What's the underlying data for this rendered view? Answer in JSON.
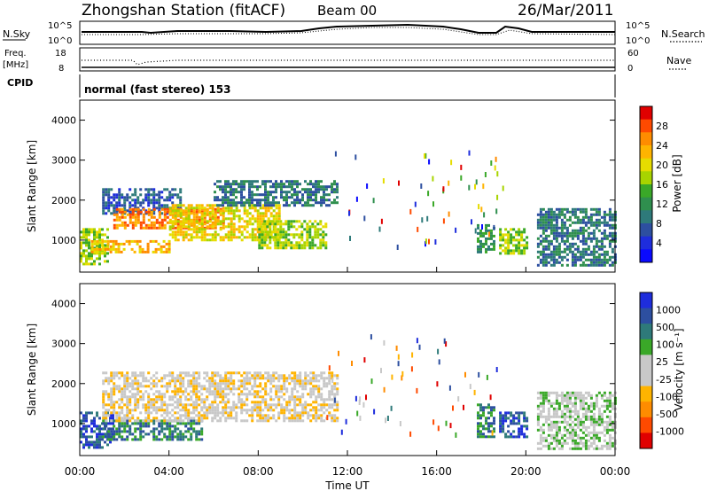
{
  "header": {
    "station": "Zhongshan Station (fitACF)",
    "beam": "Beam 00",
    "date": "26/Mar/2011"
  },
  "mode_text": "normal (fast stereo) 153",
  "nsky_panel": {
    "left_label": "N.Sky",
    "right_label": "N.Search",
    "ticks_left": [
      "10^5",
      "10^0"
    ],
    "ticks_right": [
      "10^5",
      "10^0"
    ]
  },
  "freq_panel": {
    "left_label_1": "Freq.",
    "left_label_2": "[MHz]",
    "right_label": "Nave",
    "ticks_left": [
      "18",
      "8"
    ],
    "ticks_right": [
      "60",
      "0"
    ]
  },
  "cpid_label": "CPID",
  "chart_data": [
    {
      "type": "heatmap",
      "panel": "power",
      "xlabel": "Time UT",
      "ylabel": "Slant Range [km]",
      "x_ticks": [
        "00:00",
        "04:00",
        "08:00",
        "12:00",
        "16:00",
        "20:00",
        "00:00"
      ],
      "xlim_hours": [
        0,
        24
      ],
      "ylim": [
        200,
        4500
      ],
      "y_ticks": [
        1000,
        2000,
        3000,
        4000
      ],
      "colorbar": {
        "label": "Power [dB]",
        "ticks": [
          "28",
          "24",
          "20",
          "16",
          "12",
          "8",
          "4"
        ],
        "colors_top_to_bottom": [
          "#e00000",
          "#ff4a00",
          "#ff8c00",
          "#ffb400",
          "#e6dc00",
          "#a8d400",
          "#3aa828",
          "#2f8f4e",
          "#2e7a7a",
          "#2d4fa0",
          "#1e2ddc",
          "#0a0aff"
        ]
      },
      "regions": [
        {
          "t": [
            0.0,
            1.2
          ],
          "r": [
            400,
            1300
          ],
          "level": 6
        },
        {
          "t": [
            1.0,
            4.5
          ],
          "r": [
            1700,
            2300
          ],
          "level": 2
        },
        {
          "t": [
            1.5,
            6.5
          ],
          "r": [
            1300,
            1800
          ],
          "level": 9
        },
        {
          "t": [
            0.5,
            4.0
          ],
          "r": [
            700,
            1000
          ],
          "level": 8
        },
        {
          "t": [
            4.0,
            9.0
          ],
          "r": [
            1000,
            1900
          ],
          "level": 7
        },
        {
          "t": [
            6.0,
            11.5
          ],
          "r": [
            1900,
            2500
          ],
          "level": 3
        },
        {
          "t": [
            8.0,
            11.0
          ],
          "r": [
            800,
            1500
          ],
          "level": 6
        },
        {
          "t": [
            17.8,
            18.6
          ],
          "r": [
            700,
            1400
          ],
          "level": 4
        },
        {
          "t": [
            18.8,
            20.0
          ],
          "r": [
            700,
            1300
          ],
          "level": 6
        },
        {
          "t": [
            20.5,
            24.0
          ],
          "r": [
            400,
            1800
          ],
          "level": 3
        }
      ]
    },
    {
      "type": "heatmap",
      "panel": "velocity",
      "xlabel": "Time UT",
      "ylabel": "Slant Range [km]",
      "x_ticks": [
        "00:00",
        "04:00",
        "08:00",
        "12:00",
        "16:00",
        "20:00",
        "00:00"
      ],
      "xlim_hours": [
        0,
        24
      ],
      "ylim": [
        200,
        4500
      ],
      "y_ticks": [
        1000,
        2000,
        3000,
        4000
      ],
      "colorbar": {
        "label": "Velocity [m s⁻¹]",
        "ticks": [
          "1000",
          "500",
          "100",
          "25",
          "-25",
          "-100",
          "-500",
          "-1000"
        ],
        "colors_top_to_bottom": [
          "#1e2ddc",
          "#2d4fa0",
          "#2e7a7a",
          "#3aa828",
          "#c8c8c8",
          "#c8c8c8",
          "#ffb400",
          "#ff8c00",
          "#ff4a00",
          "#e00000"
        ]
      },
      "regions": [
        {
          "t": [
            0.0,
            1.5
          ],
          "r": [
            400,
            1300
          ],
          "level": 8
        },
        {
          "t": [
            1.0,
            5.5
          ],
          "r": [
            600,
            1100
          ],
          "level": 7
        },
        {
          "t": [
            1.0,
            11.5
          ],
          "r": [
            1100,
            2300
          ],
          "level": 4
        },
        {
          "t": [
            17.8,
            18.6
          ],
          "r": [
            700,
            1500
          ],
          "level": 7
        },
        {
          "t": [
            18.8,
            20.0
          ],
          "r": [
            700,
            1300
          ],
          "level": 8
        },
        {
          "t": [
            20.5,
            24.0
          ],
          "r": [
            400,
            1800
          ],
          "level": 5
        }
      ]
    }
  ]
}
